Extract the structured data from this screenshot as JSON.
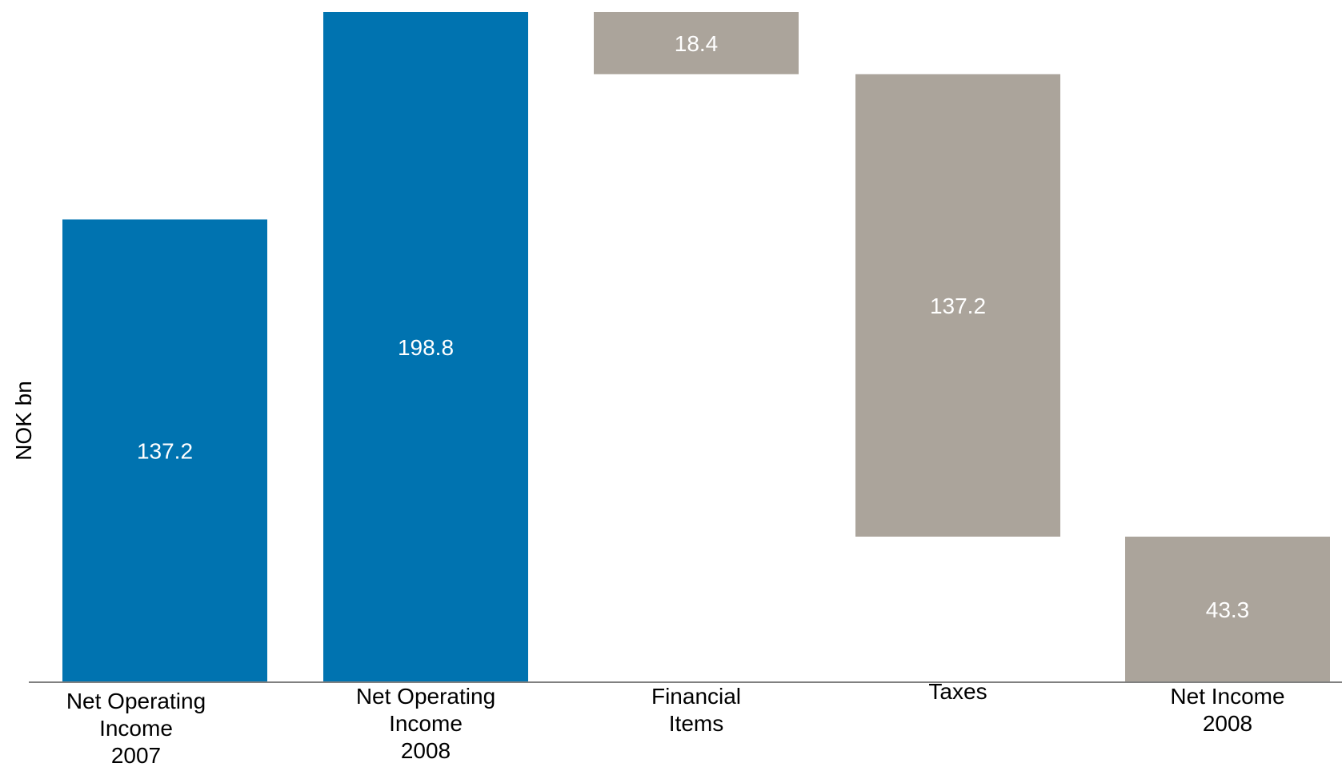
{
  "chart_data": {
    "type": "bar",
    "subtype": "waterfall",
    "ylabel": "NOK bn",
    "ylim": [
      0,
      209
    ],
    "grid": false,
    "legend": "none",
    "categories": [
      [
        "Net Operating",
        "Income",
        "2007"
      ],
      [
        "Net Operating",
        "Income",
        "2008"
      ],
      [
        "Financial",
        "Items"
      ],
      [
        "Taxes"
      ],
      [
        "Net Income",
        "2008"
      ]
    ],
    "bars": [
      {
        "label": "137.2",
        "bottom": 0,
        "top": 144.3,
        "color": "#0073b0"
      },
      {
        "label": "198.8",
        "bottom": 0,
        "top": 209.0,
        "color": "#0073b0"
      },
      {
        "label": "18.4",
        "bottom": 189.6,
        "top": 209.0,
        "color": "#aba49b"
      },
      {
        "label": "137.2",
        "bottom": 45.4,
        "top": 189.6,
        "color": "#aba49b"
      },
      {
        "label": "43.3",
        "bottom": 0,
        "top": 45.4,
        "color": "#aba49b"
      }
    ],
    "colors": {
      "increase": "#0073b0",
      "decrease": "#aba49b",
      "axis": "#808080"
    }
  }
}
